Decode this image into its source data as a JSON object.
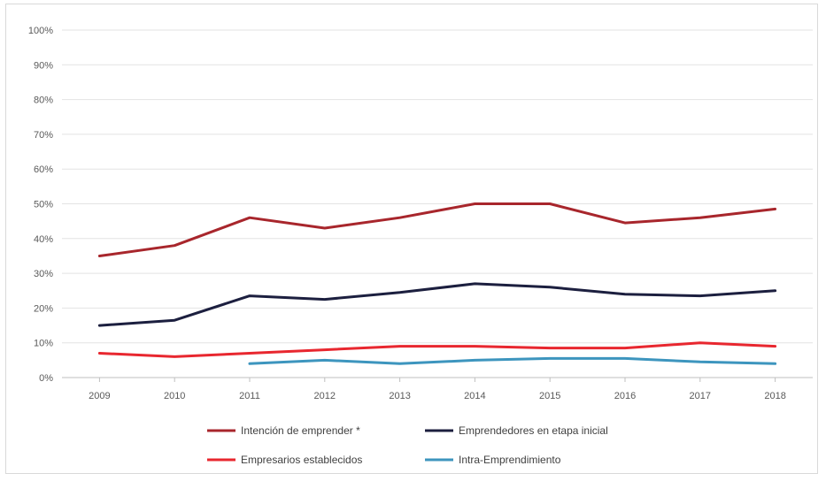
{
  "chart_data": {
    "type": "line",
    "categories": [
      "2009",
      "2010",
      "2011",
      "2012",
      "2013",
      "2014",
      "2015",
      "2016",
      "2017",
      "2018"
    ],
    "y_ticks": [
      "0%",
      "10%",
      "20%",
      "30%",
      "40%",
      "50%",
      "60%",
      "70%",
      "80%",
      "90%",
      "100%"
    ],
    "ylim": [
      0,
      100
    ],
    "grid": true,
    "legend_position": "bottom",
    "series": [
      {
        "name": "Intención de emprender *",
        "color": "#a8262c",
        "values": [
          35,
          38,
          46,
          43,
          46,
          50,
          50,
          44.5,
          46,
          48.5
        ]
      },
      {
        "name": "Emprendedores en etapa inicial",
        "color": "#1c1f3f",
        "values": [
          15,
          16.5,
          23.5,
          22.5,
          24.5,
          27,
          26,
          24,
          23.5,
          25
        ]
      },
      {
        "name": "Empresarios establecidos",
        "color": "#e8272f",
        "values": [
          7,
          6,
          7,
          8,
          9,
          9,
          8.5,
          8.5,
          10,
          9
        ]
      },
      {
        "name": "Intra-Emprendimiento",
        "color": "#3d95be",
        "values": [
          null,
          null,
          4,
          5,
          4,
          5,
          5.5,
          5.5,
          4.5,
          4
        ]
      }
    ]
  }
}
